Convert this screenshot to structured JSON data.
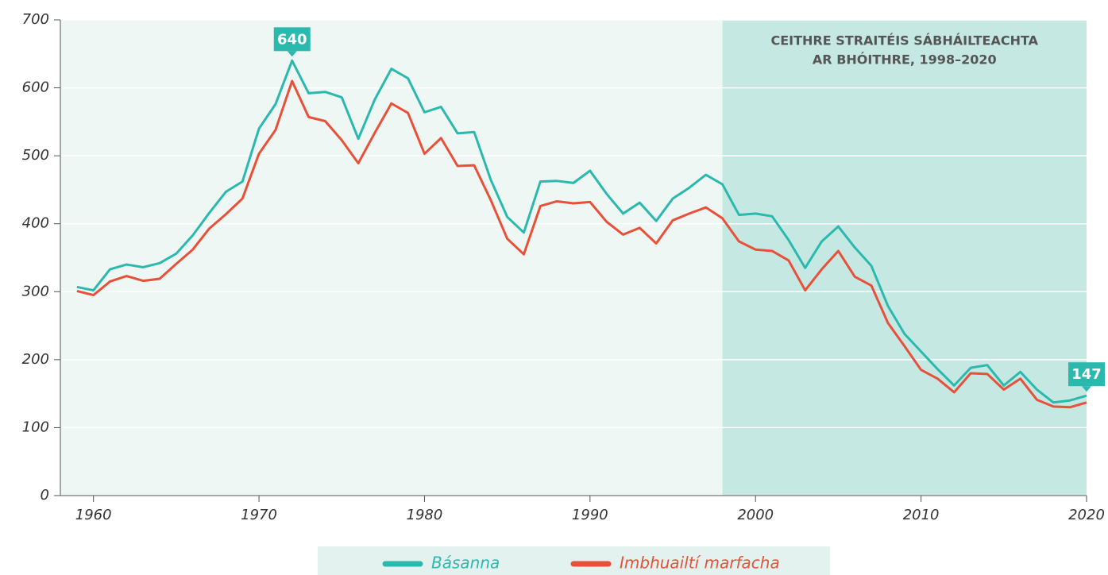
{
  "chart_data": {
    "type": "line",
    "x": [
      1959,
      1960,
      1961,
      1962,
      1963,
      1964,
      1965,
      1966,
      1967,
      1968,
      1969,
      1970,
      1971,
      1972,
      1973,
      1974,
      1975,
      1976,
      1977,
      1978,
      1979,
      1980,
      1981,
      1982,
      1983,
      1984,
      1985,
      1986,
      1987,
      1988,
      1989,
      1990,
      1991,
      1992,
      1993,
      1994,
      1995,
      1996,
      1997,
      1998,
      1999,
      2000,
      2001,
      2002,
      2003,
      2004,
      2005,
      2006,
      2007,
      2008,
      2009,
      2010,
      2011,
      2012,
      2013,
      2014,
      2015,
      2016,
      2017,
      2018,
      2019,
      2020
    ],
    "series": [
      {
        "name": "Básanna",
        "color": "#2bb9ad",
        "values": [
          307,
          302,
          333,
          340,
          336,
          342,
          356,
          383,
          416,
          447,
          462,
          540,
          576,
          640,
          592,
          594,
          586,
          525,
          583,
          628,
          614,
          564,
          572,
          533,
          535,
          465,
          410,
          387,
          462,
          463,
          460,
          478,
          444,
          415,
          431,
          404,
          437,
          453,
          472,
          458,
          413,
          415,
          411,
          376,
          335,
          374,
          396,
          365,
          338,
          279,
          238,
          212,
          186,
          162,
          188,
          192,
          162,
          182,
          156,
          137,
          140,
          147
        ]
      },
      {
        "name": "Imbhuailtí marfacha",
        "color": "#e8503a",
        "values": [
          301,
          295,
          315,
          323,
          316,
          319,
          341,
          362,
          393,
          414,
          437,
          503,
          538,
          610,
          557,
          551,
          523,
          489,
          534,
          577,
          563,
          503,
          526,
          485,
          486,
          435,
          378,
          355,
          426,
          433,
          430,
          432,
          403,
          384,
          394,
          371,
          405,
          415,
          424,
          408,
          374,
          362,
          360,
          346,
          302,
          333,
          360,
          322,
          309,
          254,
          220,
          185,
          172,
          152,
          180,
          179,
          156,
          172,
          141,
          131,
          130,
          137
        ]
      }
    ],
    "xlim": [
      1958,
      2020
    ],
    "xticks": [
      1960,
      1970,
      1980,
      1990,
      2000,
      2010,
      2020
    ],
    "ylim": [
      0,
      700
    ],
    "yticks": [
      0,
      100,
      200,
      300,
      400,
      500,
      600,
      700
    ],
    "grid": true,
    "legend": "bottom",
    "shaded_region": {
      "label_lines": [
        "CEITHRE STRAITÉIS SÁBHÁILTEACHTA",
        "AR BHÓITHRE, 1998–2020"
      ],
      "x": [
        1998,
        2020
      ],
      "color": "#c5e8e3"
    },
    "background": "#eef7f4",
    "annotations": [
      {
        "text": "640",
        "x": 1972,
        "y": 640
      },
      {
        "text": "147",
        "x": 2020,
        "y": 147
      }
    ]
  }
}
